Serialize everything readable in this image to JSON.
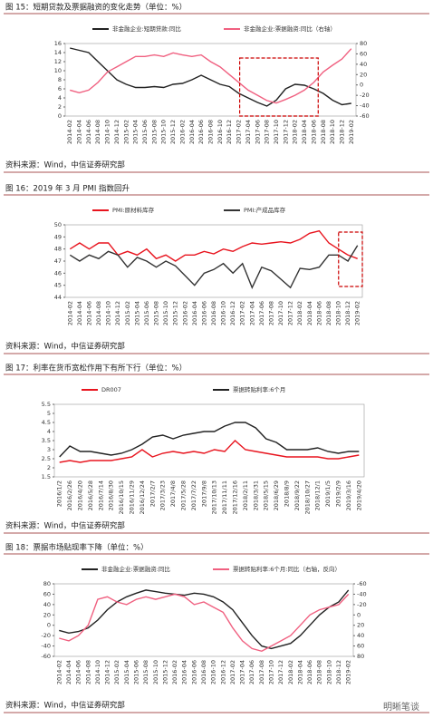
{
  "chart_data": [
    {
      "type": "line",
      "title": "图 15：短期贷款及票据融资的变化走势（单位：%）",
      "source": "资料来源：Wind，中信证券研究部",
      "categories": [
        "2014-02",
        "2014-04",
        "2014-06",
        "2014-08",
        "2014-10",
        "2014-12",
        "2015-02",
        "2015-04",
        "2015-06",
        "2015-08",
        "2015-10",
        "2015-12",
        "2016-02",
        "2016-04",
        "2016-06",
        "2016-08",
        "2016-10",
        "2016-12",
        "2017-02",
        "2017-04",
        "2017-06",
        "2017-08",
        "2017-10",
        "2017-12",
        "2018-02",
        "2018-04",
        "2018-06",
        "2018-08",
        "2018-10",
        "2018-12",
        "2019-02"
      ],
      "ylim": [
        0,
        16
      ],
      "yticks": [
        0,
        2,
        4,
        6,
        8,
        10,
        12,
        14,
        16
      ],
      "y2lim": [
        -60,
        80
      ],
      "y2ticks": [
        -60,
        -40,
        -20,
        0,
        20,
        40,
        60,
        80
      ],
      "series": [
        {
          "name": "非金融企业:短期贷款:同比",
          "color": "#222222",
          "values": [
            15,
            14.5,
            14,
            12,
            10,
            8,
            7,
            6.3,
            6.3,
            6.5,
            6.3,
            7,
            7.2,
            8,
            9,
            8,
            7,
            6.5,
            5,
            4,
            3,
            2.2,
            3.5,
            6,
            7,
            6.8,
            6,
            5,
            3.5,
            2.5,
            2.8
          ]
        },
        {
          "name": "非金融企业:票据融资:同比（右轴）",
          "color": "#f06080",
          "axis": "y2",
          "values": [
            -10,
            -15,
            -10,
            5,
            25,
            35,
            45,
            55,
            55,
            58,
            55,
            62,
            58,
            55,
            58,
            45,
            35,
            20,
            5,
            -10,
            -20,
            -30,
            -35,
            -28,
            -20,
            -10,
            5,
            25,
            38,
            50,
            70
          ]
        }
      ]
    },
    {
      "type": "line",
      "title": "图 16：2019 年 3 月 PMI 指数回升",
      "source": "资料来源：Wind，中信证券研究部",
      "categories": [
        "2014-02",
        "2014-04",
        "2014-06",
        "2014-08",
        "2014-10",
        "2014-12",
        "2015-02",
        "2015-04",
        "2015-06",
        "2015-08",
        "2015-10",
        "2015-12",
        "2016-02",
        "2016-04",
        "2016-06",
        "2016-08",
        "2016-10",
        "2016-12",
        "2017-02",
        "2017-04",
        "2017-06",
        "2017-08",
        "2017-10",
        "2017-12",
        "2018-02",
        "2018-04",
        "2018-06",
        "2018-08",
        "2018-10",
        "2018-12",
        "2019-02"
      ],
      "ylim": [
        44,
        50
      ],
      "yticks": [
        44,
        45,
        46,
        47,
        48,
        49,
        50
      ],
      "series": [
        {
          "name": "PMI:原材料库存",
          "color": "#e8141e",
          "values": [
            48,
            48.5,
            48,
            48.5,
            48.5,
            47.5,
            47.8,
            47.5,
            48,
            47.2,
            47.5,
            47,
            47.5,
            47.5,
            47.8,
            47.6,
            48,
            47.8,
            48.2,
            48.5,
            48.4,
            48.5,
            48.6,
            48.5,
            48.8,
            49.3,
            49.5,
            48.5,
            48,
            47.5,
            47.2
          ]
        },
        {
          "name": "PMI:产成品库存",
          "color": "#333333",
          "values": [
            47.5,
            47,
            47.5,
            47.2,
            47.8,
            47.5,
            46.5,
            47.3,
            47,
            46.5,
            47,
            46.6,
            45.8,
            45,
            46,
            46.3,
            46.8,
            46,
            46.8,
            44.8,
            46.5,
            46.2,
            45.5,
            44.8,
            46.4,
            46.3,
            46.5,
            47.5,
            47.5,
            47,
            48.3
          ]
        }
      ]
    },
    {
      "type": "line",
      "title": "图 17：利率在货币宽松作用下有所下行（单位：%）",
      "source": "资料来源：Wind，中信证券研究部",
      "categories": [
        "2016/1/2",
        "2016/2/26",
        "2016/4/20",
        "2016/5/28",
        "2016/7/14",
        "2016/8/30",
        "2016/10/15",
        "2016/11/29",
        "2016/12/24",
        "2017/2/7",
        "2017/3/23",
        "2017/4/8",
        "2017/5/28",
        "2017/7/22",
        "2017/9/8",
        "2017/10/13",
        "2017/11/11",
        "2017/12/16",
        "2018/2/11",
        "2018/3/31",
        "2018/5/15",
        "2018/6/29",
        "2018/8/9",
        "2018/9/22",
        "2018/10/27",
        "2018/12/1",
        "2019/1/5",
        "2019/2/9",
        "2019/3/16",
        "2019/4/20"
      ],
      "ylim": [
        1.5,
        5.5
      ],
      "yticks": [
        1.5,
        2,
        2.5,
        3,
        3.5,
        4,
        4.5,
        5,
        5.5
      ],
      "series": [
        {
          "name": "DR007",
          "color": "#e8141e",
          "values": [
            2.3,
            2.4,
            2.3,
            2.4,
            2.4,
            2.4,
            2.5,
            2.6,
            3,
            2.6,
            2.8,
            2.9,
            2.8,
            2.9,
            2.8,
            3,
            2.9,
            3.5,
            3,
            2.9,
            2.8,
            2.7,
            2.6,
            2.6,
            2.6,
            2.6,
            2.5,
            2.5,
            2.6,
            2.7
          ]
        },
        {
          "name": "票据转贴利率:6个月",
          "color": "#222222",
          "values": [
            2.6,
            3.2,
            2.9,
            2.9,
            2.8,
            2.7,
            2.8,
            3,
            3.3,
            3.7,
            3.8,
            3.6,
            3.8,
            3.9,
            4,
            4,
            4.3,
            4.5,
            4.5,
            4.2,
            3.6,
            3.4,
            3,
            3,
            3,
            3.1,
            2.9,
            2.8,
            2.9,
            2.9
          ]
        }
      ]
    },
    {
      "type": "line",
      "title": "图 18：票据市场贴现率下降（单位：%）",
      "source": "资料来源：Wind，中信证券研究部",
      "categories": [
        "2014-02",
        "2014-04",
        "2014-06",
        "2014-08",
        "2014-10",
        "2014-12",
        "2015-02",
        "2015-04",
        "2015-06",
        "2015-08",
        "2015-10",
        "2015-12",
        "2016-02",
        "2016-04",
        "2016-06",
        "2016-08",
        "2016-10",
        "2016-12",
        "2017-02",
        "2017-04",
        "2017-06",
        "2017-08",
        "2017-10",
        "2017-12",
        "2018-02",
        "2018-04",
        "2018-06",
        "2018-08",
        "2018-10",
        "2018-12",
        "2019-02"
      ],
      "ylim": [
        -60,
        80
      ],
      "yticks": [
        -60,
        -40,
        -20,
        0,
        20,
        40,
        60,
        80
      ],
      "y2lim": [
        -60,
        80
      ],
      "y2ticks": [
        -60,
        -40,
        -20,
        0,
        20,
        40,
        60,
        80
      ],
      "y2_reversed": true,
      "series": [
        {
          "name": "非金融企业:票据融资:同比",
          "color": "#222222",
          "values": [
            -10,
            -15,
            -12,
            -5,
            10,
            30,
            45,
            55,
            62,
            68,
            65,
            62,
            60,
            58,
            62,
            60,
            55,
            45,
            30,
            5,
            -20,
            -40,
            -45,
            -40,
            -35,
            -20,
            0,
            20,
            35,
            45,
            68
          ]
        },
        {
          "name": "票据转贴利率:6个月:同比（右轴，反向）",
          "color": "#f06080",
          "axis": "y2",
          "values": [
            45,
            50,
            40,
            20,
            -30,
            -35,
            -25,
            -20,
            -30,
            -35,
            -30,
            -35,
            -40,
            -35,
            -20,
            -25,
            -15,
            -5,
            25,
            50,
            65,
            70,
            60,
            50,
            40,
            20,
            0,
            -10,
            -15,
            -20,
            -40
          ]
        }
      ]
    }
  ],
  "watermark": "明晰笔谈"
}
